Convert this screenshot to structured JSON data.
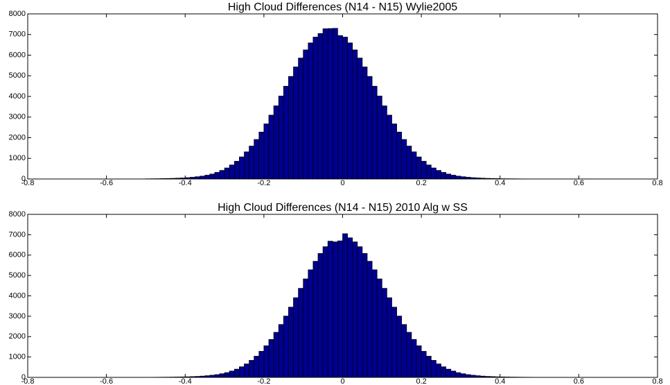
{
  "chart_data": [
    {
      "type": "histogram",
      "title": "High Cloud Differences (N14 - N15) Wylie2005",
      "color": "#00008f",
      "bins": [
        -0.5,
        -0.4875,
        -0.475,
        -0.4625,
        -0.45,
        -0.4375,
        -0.425,
        -0.4125,
        -0.4,
        -0.3875,
        -0.375,
        -0.3625,
        -0.35,
        -0.3375,
        -0.325,
        -0.3125,
        -0.3,
        -0.2875,
        -0.275,
        -0.2625,
        -0.25,
        -0.2375,
        -0.225,
        -0.2125,
        -0.2,
        -0.1875,
        -0.175,
        -0.1625,
        -0.15,
        -0.1375,
        -0.125,
        -0.1125,
        -0.1,
        -0.0875,
        -0.075,
        -0.0625,
        -0.05,
        -0.0375,
        -0.025,
        -0.0125,
        0,
        0.0125,
        0.025,
        0.0375,
        0.05,
        0.0625,
        0.075,
        0.0875,
        0.1,
        0.1125,
        0.125,
        0.1375,
        0.15,
        0.1625,
        0.175,
        0.1875,
        0.2,
        0.2125,
        0.225,
        0.2375,
        0.25,
        0.2625,
        0.275,
        0.2875,
        0.3,
        0.3125,
        0.325,
        0.3375,
        0.35,
        0.3625,
        0.375,
        0.3875,
        0.4,
        0.4125,
        0.425,
        0.4375,
        0.45,
        0.4625,
        0.475,
        0.4875,
        0.5
      ],
      "values": [
        10,
        12,
        15,
        20,
        25,
        30,
        40,
        50,
        65,
        85,
        110,
        140,
        185,
        240,
        320,
        415,
        535,
        680,
        860,
        1070,
        1315,
        1595,
        1915,
        2275,
        2670,
        3095,
        3545,
        4020,
        4495,
        4970,
        5430,
        5860,
        6255,
        6595,
        6875,
        7050,
        7280,
        7290,
        7300,
        6950,
        6875,
        6595,
        6255,
        5860,
        5430,
        4970,
        4495,
        4020,
        3545,
        3095,
        2670,
        2275,
        1915,
        1595,
        1315,
        1070,
        860,
        680,
        535,
        415,
        320,
        240,
        185,
        140,
        110,
        85,
        65,
        50,
        40,
        30,
        25,
        20,
        15,
        12,
        10,
        8,
        6,
        5,
        4,
        3
      ],
      "xlim": [
        -0.8,
        0.8
      ],
      "xticks": [
        -0.8,
        -0.6,
        -0.4,
        -0.2,
        0,
        0.2,
        0.4,
        0.6,
        0.8
      ],
      "ylim": [
        0,
        8000
      ],
      "yticks": [
        0,
        1000,
        2000,
        3000,
        4000,
        5000,
        6000,
        7000,
        8000
      ]
    },
    {
      "type": "histogram",
      "title": "High Cloud Differences (N14 - N15) 2010 Alg w SS",
      "color": "#00008f",
      "bins": [
        -0.5,
        -0.4875,
        -0.475,
        -0.4625,
        -0.45,
        -0.4375,
        -0.425,
        -0.4125,
        -0.4,
        -0.3875,
        -0.375,
        -0.3625,
        -0.35,
        -0.3375,
        -0.325,
        -0.3125,
        -0.3,
        -0.2875,
        -0.275,
        -0.2625,
        -0.25,
        -0.2375,
        -0.225,
        -0.2125,
        -0.2,
        -0.1875,
        -0.175,
        -0.1625,
        -0.15,
        -0.1375,
        -0.125,
        -0.1125,
        -0.1,
        -0.0875,
        -0.075,
        -0.0625,
        -0.05,
        -0.0375,
        -0.025,
        -0.0125,
        0,
        0.0125,
        0.025,
        0.0375,
        0.05,
        0.0625,
        0.075,
        0.0875,
        0.1,
        0.1125,
        0.125,
        0.1375,
        0.15,
        0.1625,
        0.175,
        0.1875,
        0.2,
        0.2125,
        0.225,
        0.2375,
        0.25,
        0.2625,
        0.275,
        0.2875,
        0.3,
        0.3125,
        0.325,
        0.3375,
        0.35,
        0.3625,
        0.375,
        0.3875,
        0.4,
        0.4125,
        0.425,
        0.4375,
        0.45,
        0.4625,
        0.475,
        0.4875,
        0.5
      ],
      "values": [
        5,
        6,
        8,
        10,
        12,
        15,
        19,
        24,
        29,
        39,
        49,
        63,
        83,
        107,
        136,
        180,
        233,
        311,
        404,
        520,
        661,
        836,
        1040,
        1279,
        1551,
        1862,
        2212,
        2596,
        3010,
        3447,
        3909,
        4371,
        4833,
        5280,
        5698,
        6082,
        6413,
        6685,
        6650,
        6700,
        7050,
        6850,
        6650,
        6413,
        6082,
        5698,
        5280,
        4833,
        4371,
        3909,
        3447,
        3010,
        2596,
        2212,
        1862,
        1551,
        1279,
        1040,
        836,
        661,
        520,
        404,
        311,
        233,
        180,
        136,
        107,
        83,
        63,
        49,
        39,
        29,
        24,
        19,
        15,
        12,
        10,
        8,
        6,
        5
      ],
      "xlim": [
        -0.8,
        0.8
      ],
      "xticks": [
        -0.8,
        -0.6,
        -0.4,
        -0.2,
        0,
        0.2,
        0.4,
        0.6,
        0.8
      ],
      "ylim": [
        0,
        8000
      ],
      "yticks": [
        0,
        1000,
        2000,
        3000,
        4000,
        5000,
        6000,
        7000,
        8000
      ]
    }
  ]
}
